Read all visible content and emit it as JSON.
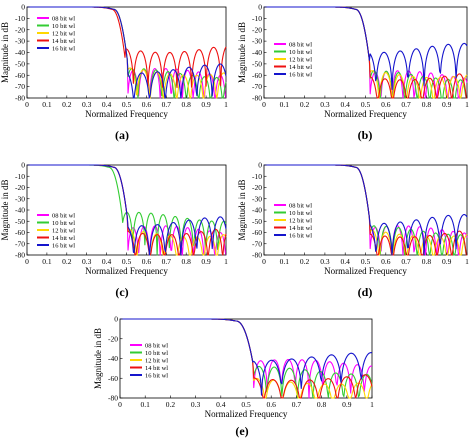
{
  "chart_data": [
    {
      "type": "line",
      "panel_label": "(a)",
      "xlabel": "Normalized Frequency",
      "ylabel": "Magnitude in dB",
      "xlim": [
        0,
        1
      ],
      "ylim": [
        -80,
        0
      ],
      "xticks": [
        "0",
        "0.1",
        "0.2",
        "0.3",
        "0.4",
        "0.5",
        "0.6",
        "0.7",
        "0.8",
        "0.9",
        "1"
      ],
      "yticks": [
        "0",
        "-10",
        "-20",
        "-30",
        "-40",
        "-50",
        "-60",
        "-70",
        "-80"
      ],
      "legend_position": "top-left",
      "series": [
        {
          "name": "08 bit wl",
          "color": "#ff00ff",
          "cutoff": 0.505,
          "floor": -58
        },
        {
          "name": "10 bit wl",
          "color": "#33cc33",
          "cutoff": 0.505,
          "floor": -58
        },
        {
          "name": "12 bit wl",
          "color": "#ffd700",
          "cutoff": 0.505,
          "floor": -56
        },
        {
          "name": "14 bit wl",
          "color": "#ee1111",
          "cutoff": 0.495,
          "floor": -36
        },
        {
          "name": "16 bit wl",
          "color": "#1515cc",
          "cutoff": 0.505,
          "floor": -54
        }
      ]
    },
    {
      "type": "line",
      "panel_label": "(b)",
      "xlabel": "Normalized Frequency",
      "ylabel": "Magnitude in dB",
      "xlim": [
        0,
        1
      ],
      "ylim": [
        -80,
        0
      ],
      "xticks": [
        "0",
        "0.1",
        "0.2",
        "0.3",
        "0.4",
        "0.5",
        "0.6",
        "0.7",
        "0.8",
        "0.9",
        "1"
      ],
      "yticks": [
        "0",
        "-10",
        "-20",
        "-30",
        "-40",
        "-50",
        "-60",
        "-70",
        "-80"
      ],
      "legend_position": "middle-left",
      "series": [
        {
          "name": "08 bit wl",
          "color": "#ff00ff",
          "cutoff": 0.52,
          "floor": -60
        },
        {
          "name": "10 bit wl",
          "color": "#33cc33",
          "cutoff": 0.52,
          "floor": -60
        },
        {
          "name": "12 bit wl",
          "color": "#ffd700",
          "cutoff": 0.52,
          "floor": -58
        },
        {
          "name": "14 bit wl",
          "color": "#ee1111",
          "cutoff": 0.52,
          "floor": -60
        },
        {
          "name": "16 bit wl",
          "color": "#1515cc",
          "cutoff": 0.52,
          "floor": -36
        }
      ]
    },
    {
      "type": "line",
      "panel_label": "(c)",
      "xlabel": "Normalized Frequency",
      "ylabel": "Magnitude in dB",
      "xlim": [
        0,
        1
      ],
      "ylim": [
        -80,
        0
      ],
      "xticks": [
        "0",
        "0.1",
        "0.2",
        "0.3",
        "0.4",
        "0.5",
        "0.6",
        "0.7",
        "0.8",
        "0.9",
        "1"
      ],
      "yticks": [
        "0",
        "-10",
        "-20",
        "-30",
        "-40",
        "-50",
        "-60",
        "-70",
        "-80"
      ],
      "legend_position": "middle-left",
      "series": [
        {
          "name": "08 bit wl",
          "color": "#ff00ff",
          "cutoff": 0.505,
          "floor": -58
        },
        {
          "name": "10 bit wl",
          "color": "#33cc33",
          "cutoff": 0.48,
          "floor": -46
        },
        {
          "name": "12 bit wl",
          "color": "#ffd700",
          "cutoff": 0.505,
          "floor": -60
        },
        {
          "name": "14 bit wl",
          "color": "#ee1111",
          "cutoff": 0.505,
          "floor": -58
        },
        {
          "name": "16 bit wl",
          "color": "#1515cc",
          "cutoff": 0.505,
          "floor": -50
        }
      ]
    },
    {
      "type": "line",
      "panel_label": "(d)",
      "xlabel": "Normalized Frequency",
      "ylabel": "Magnitude in dB",
      "xlim": [
        0,
        1
      ],
      "ylim": [
        -80,
        0
      ],
      "xticks": [
        "0",
        "0.1",
        "0.2",
        "0.3",
        "0.4",
        "0.5",
        "0.6",
        "0.7",
        "0.8",
        "0.9",
        "1"
      ],
      "yticks": [
        "0",
        "-10",
        "-20",
        "-30",
        "-40",
        "-50",
        "-60",
        "-70",
        "-80"
      ],
      "legend_position": "middle-left",
      "series": [
        {
          "name": "08 bit wl",
          "color": "#ff00ff",
          "cutoff": 0.52,
          "floor": -58
        },
        {
          "name": "10 bit wl",
          "color": "#33cc33",
          "cutoff": 0.52,
          "floor": -58
        },
        {
          "name": "12 bit wl",
          "color": "#ffd700",
          "cutoff": 0.52,
          "floor": -60
        },
        {
          "name": "14 bit wl",
          "color": "#ee1111",
          "cutoff": 0.52,
          "floor": -60
        },
        {
          "name": "16 bit wl",
          "color": "#1515cc",
          "cutoff": 0.52,
          "floor": -48
        }
      ]
    },
    {
      "type": "line",
      "panel_label": "(e)",
      "xlabel": "Normalized Frequency",
      "ylabel": "Magnitude in dB",
      "xlim": [
        0,
        1
      ],
      "ylim": [
        -80,
        0
      ],
      "xticks": [
        "0",
        "0.1",
        "0.2",
        "0.3",
        "0.4",
        "0.5",
        "0.6",
        "0.7",
        "0.8",
        "0.9",
        "1"
      ],
      "yticks": [
        "0",
        "-20",
        "-40",
        "-60",
        "-80"
      ],
      "legend_position": "middle-left",
      "series": [
        {
          "name": "08 bit wl",
          "color": "#ff00ff",
          "cutoff": 0.53,
          "floor": -45
        },
        {
          "name": "10 bit wl",
          "color": "#33cc33",
          "cutoff": 0.53,
          "floor": -52
        },
        {
          "name": "12 bit wl",
          "color": "#ffd700",
          "cutoff": 0.53,
          "floor": -62
        },
        {
          "name": "14 bit wl",
          "color": "#ee1111",
          "cutoff": 0.53,
          "floor": -58
        },
        {
          "name": "16 bit wl",
          "color": "#1515cc",
          "cutoff": 0.53,
          "floor": -38
        }
      ]
    }
  ]
}
